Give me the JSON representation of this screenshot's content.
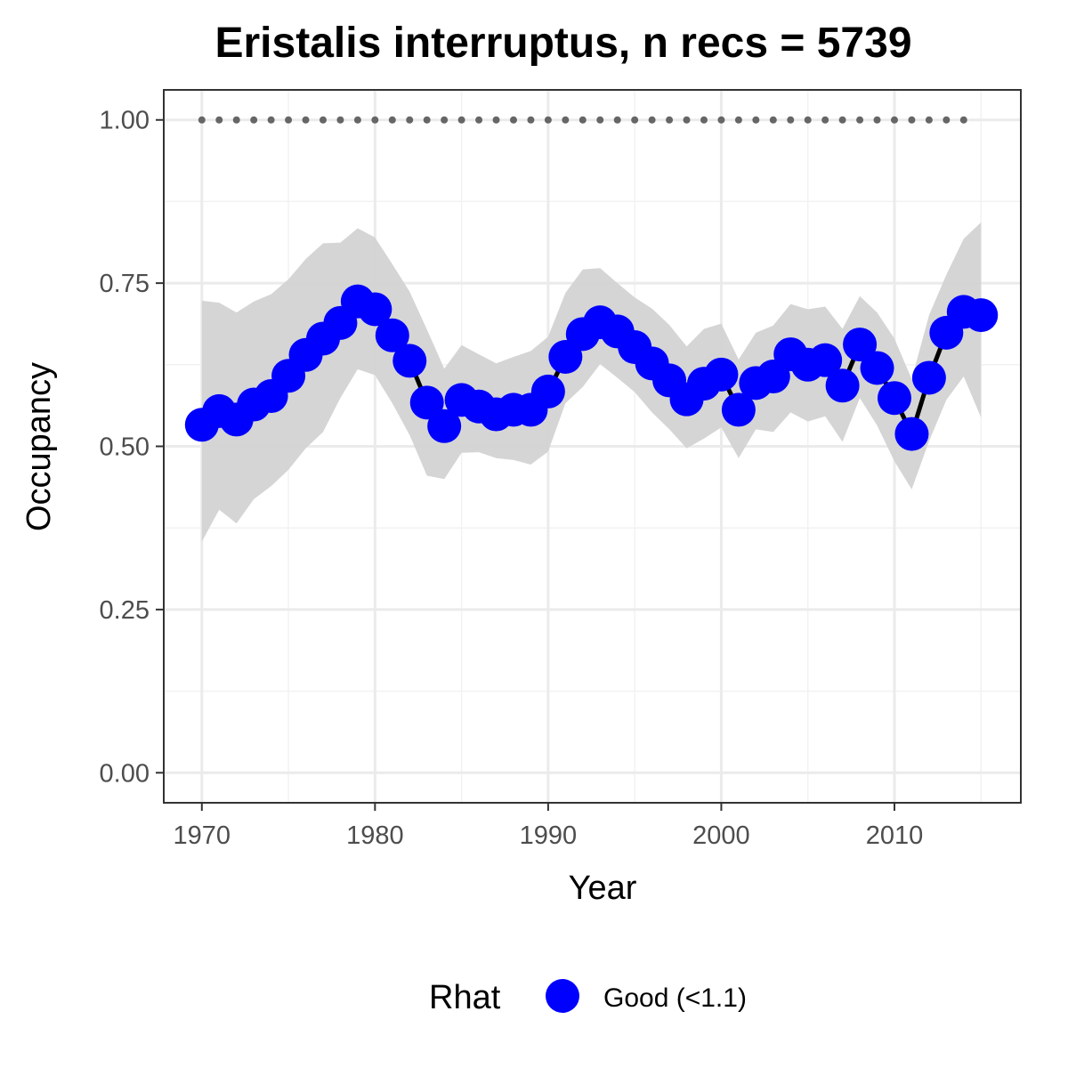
{
  "chart_data": {
    "type": "line",
    "title": "Eristalis interruptus, n recs = 5739",
    "xlabel": "Year",
    "ylabel": "Occupancy",
    "xlim": [
      1967.8,
      1917.3
    ],
    "ylim": [
      -0.046,
      1.046
    ],
    "x_ticks": [
      1970,
      1980,
      1990,
      2000,
      2010
    ],
    "x_tick_labels": [
      "1970",
      "1980",
      "1990",
      "2000",
      "2010"
    ],
    "y_ticks": [
      0,
      0.25,
      0.5,
      0.75,
      1.0
    ],
    "y_tick_labels": [
      "0.00",
      "0.25",
      "0.50",
      "0.75",
      "1.00"
    ],
    "grid": true,
    "legend": {
      "position": "bottom",
      "title": "Rhat",
      "entries": [
        {
          "label": "Good (<1.1)",
          "color": "#0000ff"
        }
      ]
    },
    "colors": {
      "points": "#0000ff",
      "line": "#000000",
      "ribbon": "#d3d3d3",
      "reference_dots": "#666666"
    },
    "x": [
      1970,
      1971,
      1972,
      1973,
      1974,
      1975,
      1976,
      1977,
      1978,
      1979,
      1980,
      1981,
      1982,
      1983,
      1984,
      1985,
      1986,
      1987,
      1988,
      1989,
      1990,
      1991,
      1992,
      1993,
      1994,
      1995,
      1996,
      1997,
      1998,
      1999,
      2000,
      2001,
      2002,
      2003,
      2004,
      2005,
      2006,
      2007,
      2008,
      2009,
      2010,
      2011,
      2012,
      2013,
      2014,
      2015
    ],
    "series": [
      {
        "values": [
          0.533,
          0.554,
          0.541,
          0.564,
          0.577,
          0.608,
          0.64,
          0.665,
          0.689,
          0.722,
          0.71,
          0.67,
          0.631,
          0.567,
          0.531,
          0.571,
          0.561,
          0.549,
          0.556,
          0.556,
          0.584,
          0.637,
          0.672,
          0.69,
          0.676,
          0.652,
          0.627,
          0.601,
          0.572,
          0.596,
          0.61,
          0.556,
          0.597,
          0.607,
          0.641,
          0.625,
          0.632,
          0.593,
          0.656,
          0.62,
          0.574,
          0.519,
          0.605,
          0.674,
          0.706,
          0.701
        ],
        "lower": [
          0.354,
          0.403,
          0.382,
          0.419,
          0.439,
          0.464,
          0.497,
          0.522,
          0.574,
          0.618,
          0.609,
          0.566,
          0.517,
          0.455,
          0.45,
          0.49,
          0.491,
          0.482,
          0.479,
          0.472,
          0.492,
          0.566,
          0.591,
          0.626,
          0.605,
          0.583,
          0.552,
          0.526,
          0.497,
          0.512,
          0.529,
          0.482,
          0.526,
          0.522,
          0.552,
          0.538,
          0.546,
          0.507,
          0.574,
          0.532,
          0.477,
          0.434,
          0.508,
          0.571,
          0.607,
          0.544
        ],
        "upper": [
          0.723,
          0.72,
          0.705,
          0.722,
          0.733,
          0.756,
          0.787,
          0.811,
          0.812,
          0.834,
          0.82,
          0.779,
          0.737,
          0.679,
          0.619,
          0.655,
          0.641,
          0.627,
          0.637,
          0.646,
          0.668,
          0.735,
          0.771,
          0.773,
          0.75,
          0.728,
          0.711,
          0.686,
          0.653,
          0.68,
          0.688,
          0.633,
          0.674,
          0.685,
          0.718,
          0.71,
          0.714,
          0.68,
          0.73,
          0.705,
          0.665,
          0.603,
          0.701,
          0.763,
          0.818,
          0.843
        ]
      }
    ],
    "reference_line": {
      "y": 1.0,
      "x_from": 1970,
      "x_to": 2014
    }
  }
}
